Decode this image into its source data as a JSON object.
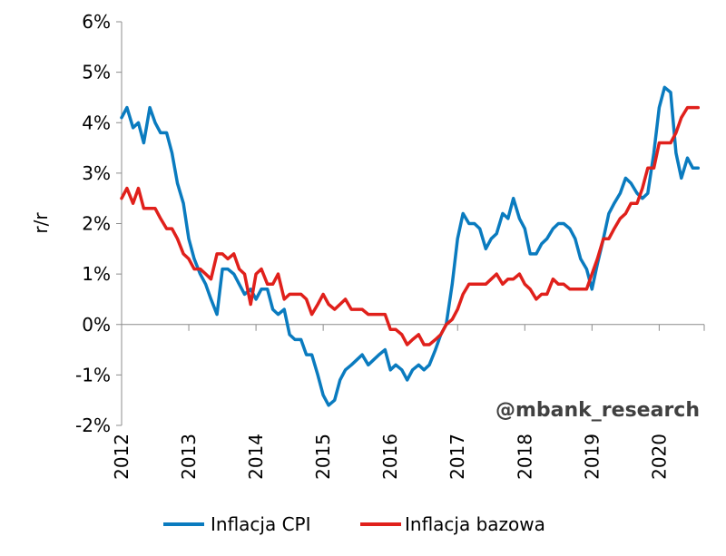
{
  "chart_data": {
    "type": "line",
    "ylabel": "r/r",
    "ylim": [
      -2,
      6
    ],
    "y_ticks": [
      "-2%",
      "-1%",
      "0%",
      "1%",
      "2%",
      "3%",
      "4%",
      "5%",
      "6%"
    ],
    "y_tick_values": [
      -2,
      -1,
      0,
      1,
      2,
      3,
      4,
      5,
      6
    ],
    "x_ticks": [
      "2012",
      "2013",
      "2014",
      "2015",
      "2016",
      "2017",
      "2018",
      "2019",
      "2020"
    ],
    "x_tick_values": [
      2012,
      2013,
      2014,
      2015,
      2016,
      2017,
      2018,
      2019,
      2020
    ],
    "xlim": [
      2012,
      2020.67
    ],
    "grid": false,
    "legend_position": "bottom",
    "annotation": "@mbank_research",
    "series": [
      {
        "name": "Inflacja CPI",
        "color": "#0a7bbf",
        "x": [
          2012.0,
          2012.08,
          2012.17,
          2012.25,
          2012.33,
          2012.42,
          2012.5,
          2012.58,
          2012.67,
          2012.75,
          2012.83,
          2012.92,
          2013.0,
          2013.08,
          2013.17,
          2013.25,
          2013.33,
          2013.42,
          2013.5,
          2013.58,
          2013.67,
          2013.75,
          2013.83,
          2013.92,
          2014.0,
          2014.08,
          2014.17,
          2014.25,
          2014.33,
          2014.42,
          2014.5,
          2014.58,
          2014.67,
          2014.75,
          2014.83,
          2014.92,
          2015.0,
          2015.08,
          2015.17,
          2015.25,
          2015.33,
          2015.42,
          2015.5,
          2015.58,
          2015.67,
          2015.75,
          2015.83,
          2015.92,
          2016.0,
          2016.08,
          2016.17,
          2016.25,
          2016.33,
          2016.42,
          2016.5,
          2016.58,
          2016.67,
          2016.75,
          2016.83,
          2016.92,
          2017.0,
          2017.08,
          2017.17,
          2017.25,
          2017.33,
          2017.42,
          2017.5,
          2017.58,
          2017.67,
          2017.75,
          2017.83,
          2017.92,
          2018.0,
          2018.08,
          2018.17,
          2018.25,
          2018.33,
          2018.42,
          2018.5,
          2018.58,
          2018.67,
          2018.75,
          2018.83,
          2018.92,
          2019.0,
          2019.08,
          2019.17,
          2019.25,
          2019.33,
          2019.42,
          2019.5,
          2019.58,
          2019.67,
          2019.75,
          2019.83,
          2019.92,
          2020.0,
          2020.08,
          2020.17,
          2020.25,
          2020.33,
          2020.42,
          2020.5,
          2020.58
        ],
        "values": [
          4.1,
          4.3,
          3.9,
          4.0,
          3.6,
          4.3,
          4.0,
          3.8,
          3.8,
          3.4,
          2.8,
          2.4,
          1.7,
          1.3,
          1.0,
          0.8,
          0.5,
          0.2,
          1.1,
          1.1,
          1.0,
          0.8,
          0.6,
          0.7,
          0.5,
          0.7,
          0.7,
          0.3,
          0.2,
          0.3,
          -0.2,
          -0.3,
          -0.3,
          -0.6,
          -0.6,
          -1.0,
          -1.4,
          -1.6,
          -1.5,
          -1.1,
          -0.9,
          -0.8,
          -0.7,
          -0.6,
          -0.8,
          -0.7,
          -0.6,
          -0.5,
          -0.9,
          -0.8,
          -0.9,
          -1.1,
          -0.9,
          -0.8,
          -0.9,
          -0.8,
          -0.5,
          -0.2,
          0.0,
          0.8,
          1.7,
          2.2,
          2.0,
          2.0,
          1.9,
          1.5,
          1.7,
          1.8,
          2.2,
          2.1,
          2.5,
          2.1,
          1.9,
          1.4,
          1.4,
          1.6,
          1.7,
          1.9,
          2.0,
          2.0,
          1.9,
          1.7,
          1.3,
          1.1,
          0.7,
          1.2,
          1.7,
          2.2,
          2.4,
          2.6,
          2.9,
          2.8,
          2.6,
          2.5,
          2.6,
          3.4,
          4.3,
          4.7,
          4.6,
          3.4,
          2.9,
          3.3,
          3.1,
          3.1
        ]
      },
      {
        "name": "Inflacja bazowa",
        "color": "#e0201b",
        "x": [
          2012.0,
          2012.08,
          2012.17,
          2012.25,
          2012.33,
          2012.42,
          2012.5,
          2012.58,
          2012.67,
          2012.75,
          2012.83,
          2012.92,
          2013.0,
          2013.08,
          2013.17,
          2013.25,
          2013.33,
          2013.42,
          2013.5,
          2013.58,
          2013.67,
          2013.75,
          2013.83,
          2013.92,
          2014.0,
          2014.08,
          2014.17,
          2014.25,
          2014.33,
          2014.42,
          2014.5,
          2014.58,
          2014.67,
          2014.75,
          2014.83,
          2014.92,
          2015.0,
          2015.08,
          2015.17,
          2015.25,
          2015.33,
          2015.42,
          2015.5,
          2015.58,
          2015.67,
          2015.75,
          2015.83,
          2015.92,
          2016.0,
          2016.08,
          2016.17,
          2016.25,
          2016.33,
          2016.42,
          2016.5,
          2016.58,
          2016.67,
          2016.75,
          2016.83,
          2016.92,
          2017.0,
          2017.08,
          2017.17,
          2017.25,
          2017.33,
          2017.42,
          2017.5,
          2017.58,
          2017.67,
          2017.75,
          2017.83,
          2017.92,
          2018.0,
          2018.08,
          2018.17,
          2018.25,
          2018.33,
          2018.42,
          2018.5,
          2018.58,
          2018.67,
          2018.75,
          2018.83,
          2018.92,
          2019.0,
          2019.08,
          2019.17,
          2019.25,
          2019.33,
          2019.42,
          2019.5,
          2019.58,
          2019.67,
          2019.75,
          2019.83,
          2019.92,
          2020.0,
          2020.08,
          2020.17,
          2020.25,
          2020.33,
          2020.42,
          2020.5,
          2020.58
        ],
        "values": [
          2.5,
          2.7,
          2.4,
          2.7,
          2.3,
          2.3,
          2.3,
          2.1,
          1.9,
          1.9,
          1.7,
          1.4,
          1.3,
          1.1,
          1.1,
          1.0,
          0.9,
          1.4,
          1.4,
          1.3,
          1.4,
          1.1,
          1.0,
          0.4,
          1.0,
          1.1,
          0.8,
          0.8,
          1.0,
          0.5,
          0.6,
          0.6,
          0.6,
          0.5,
          0.2,
          0.4,
          0.6,
          0.4,
          0.3,
          0.4,
          0.5,
          0.3,
          0.3,
          0.3,
          0.2,
          0.2,
          0.2,
          0.2,
          -0.1,
          -0.1,
          -0.2,
          -0.4,
          -0.3,
          -0.2,
          -0.4,
          -0.4,
          -0.3,
          -0.2,
          0.0,
          0.1,
          0.3,
          0.6,
          0.8,
          0.8,
          0.8,
          0.8,
          0.9,
          1.0,
          0.8,
          0.9,
          0.9,
          1.0,
          0.8,
          0.7,
          0.5,
          0.6,
          0.6,
          0.9,
          0.8,
          0.8,
          0.7,
          0.7,
          0.7,
          0.7,
          1.0,
          1.3,
          1.7,
          1.7,
          1.9,
          2.1,
          2.2,
          2.4,
          2.4,
          2.7,
          3.1,
          3.1,
          3.6,
          3.6,
          3.6,
          3.8,
          4.1,
          4.3,
          4.3,
          4.3
        ]
      }
    ]
  }
}
